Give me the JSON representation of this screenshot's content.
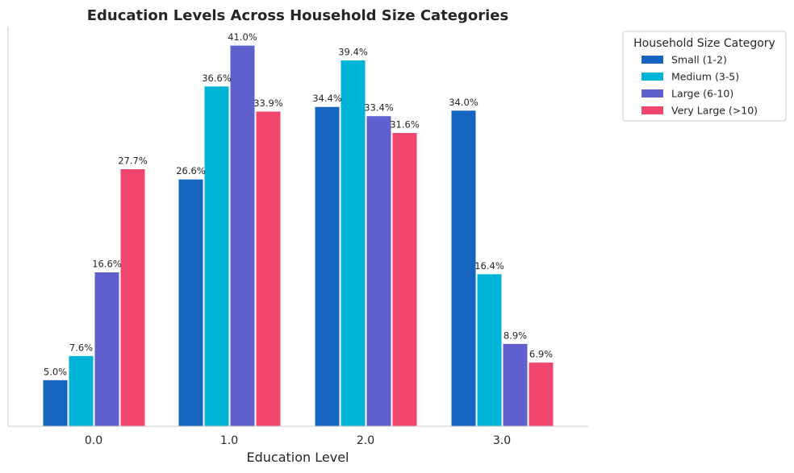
{
  "chart_data": {
    "type": "bar",
    "title": "Education Levels Across Household Size Categories",
    "xlabel": "Education Level",
    "ylabel": "",
    "categories": [
      "0.0",
      "1.0",
      "2.0",
      "3.0"
    ],
    "ylim": [
      0,
      43
    ],
    "grid": false,
    "legend": {
      "title": "Household Size Category",
      "placement": "upper-right outside"
    },
    "series": [
      {
        "name": "Small (1-2)",
        "color": "#1565c0",
        "values": [
          5.0,
          26.6,
          34.4,
          34.0
        ],
        "labels": [
          "5.0%",
          "26.6%",
          "34.4%",
          "34.0%"
        ]
      },
      {
        "name": "Medium (3-5)",
        "color": "#00b4d8",
        "values": [
          7.6,
          36.6,
          39.4,
          16.4
        ],
        "labels": [
          "7.6%",
          "36.6%",
          "39.4%",
          "16.4%"
        ]
      },
      {
        "name": "Large (6-10)",
        "color": "#5f5fcd",
        "values": [
          16.6,
          41.0,
          33.4,
          8.9
        ],
        "labels": [
          "16.6%",
          "41.0%",
          "33.4%",
          "8.9%"
        ]
      },
      {
        "name": "Very Large (>10)",
        "color": "#f1476f",
        "values": [
          27.7,
          33.9,
          31.6,
          6.9
        ],
        "labels": [
          "27.7%",
          "33.9%",
          "31.6%",
          "6.9%"
        ]
      }
    ]
  }
}
